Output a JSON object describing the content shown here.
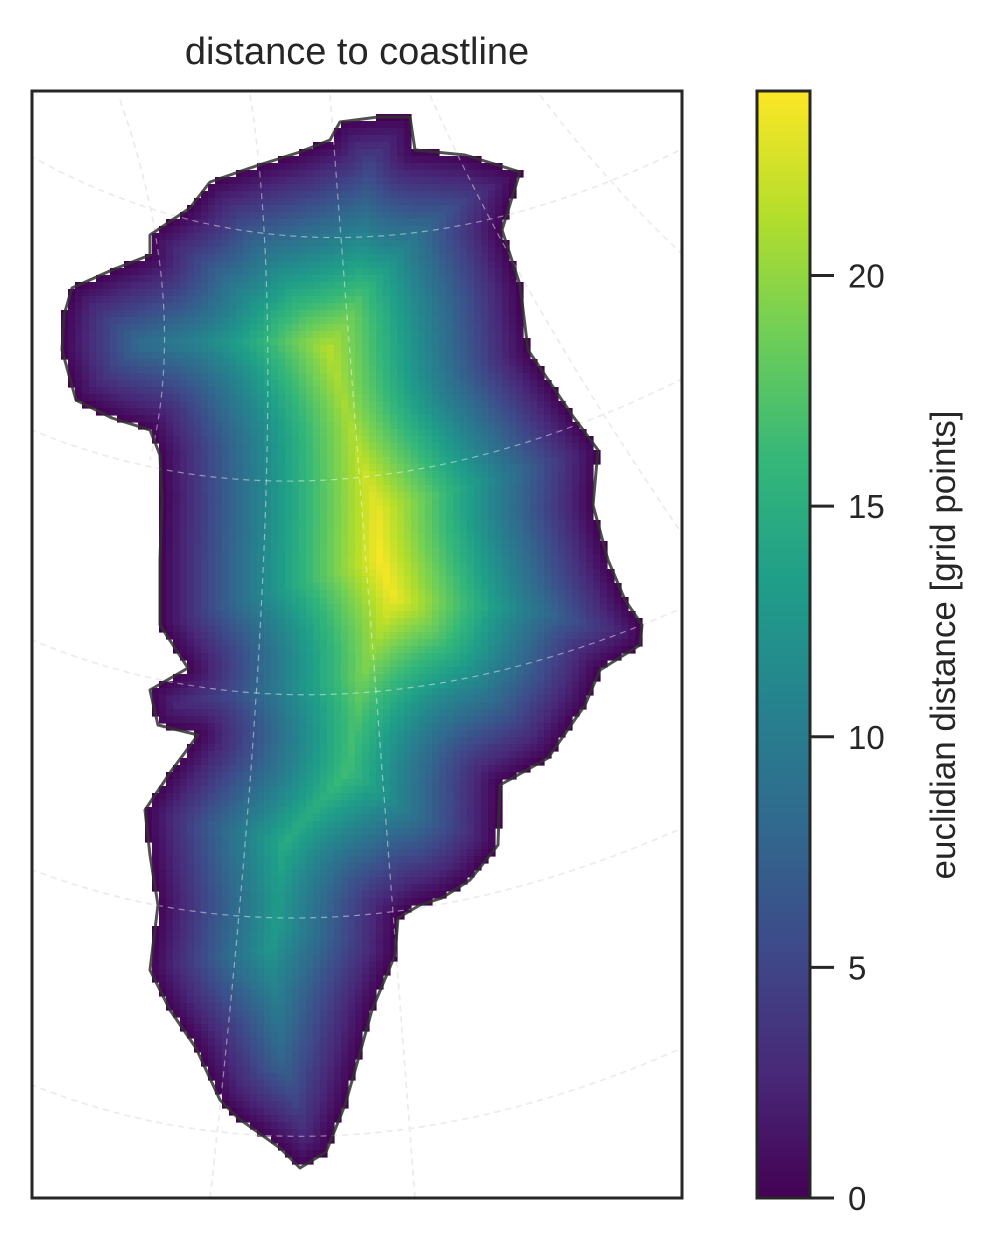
{
  "chart_data": [
    {
      "type": "heatmap",
      "title": "distance to coastline",
      "xlabel": "",
      "ylabel": "",
      "description_of_values": "Euclidian distance of each land grid cell to the nearest coastline cell; maximum along the central ice-sheet ridge",
      "value_range": [
        0,
        23.8
      ],
      "peak_value": 23.8,
      "colormap": "viridis",
      "grid_lines": true,
      "coastline_drawn": true
    },
    {
      "type": "colorbar",
      "label": "euclidian distance [grid points]",
      "ylim": [
        0,
        24
      ],
      "ticks": [
        0,
        5,
        10,
        15,
        20
      ],
      "tick_labels": [
        "0",
        "5",
        "10",
        "15",
        "20"
      ],
      "colormap": "viridis"
    }
  ],
  "colors": {
    "frame": "#262626",
    "graticule": "#dddddd",
    "coastline": "#333333",
    "viridis": [
      "#440154",
      "#482878",
      "#3e4989",
      "#31688e",
      "#26828e",
      "#1f9e89",
      "#35b779",
      "#6ece58",
      "#b5de2b",
      "#fde725"
    ]
  }
}
